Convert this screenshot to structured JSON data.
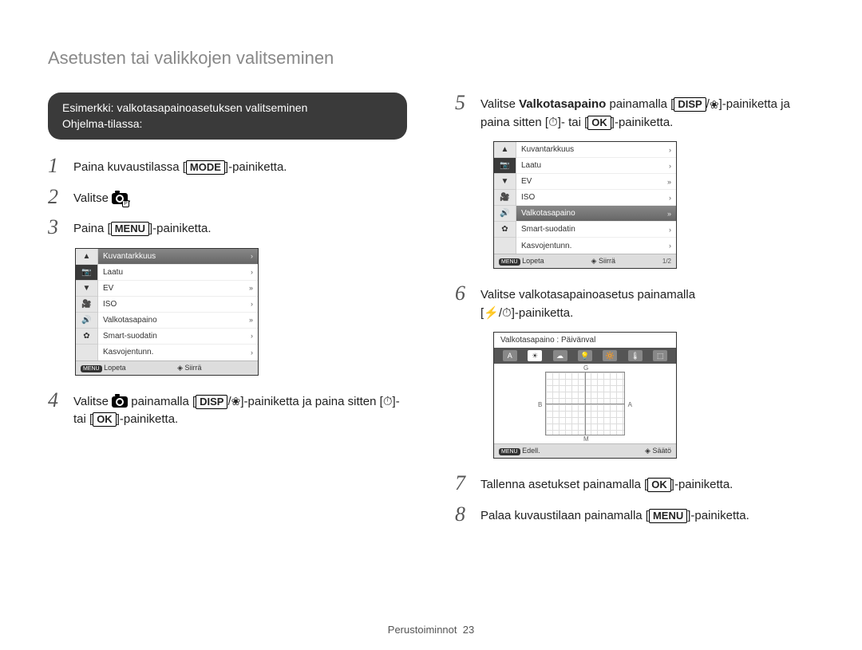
{
  "pageTitle": "Asetusten tai valikkojen valitseminen",
  "examplePill": {
    "line1": "Esimerkki: valkotasapainoasetuksen valitseminen",
    "line2": "Ohjelma-tilassa:"
  },
  "buttons": {
    "mode": "MODE",
    "menu": "MENU",
    "disp": "DISP",
    "ok": "OK"
  },
  "steps": {
    "s1": {
      "num": "1",
      "pre": "Paina kuvaustilassa [",
      "post": "]-painiketta."
    },
    "s2": {
      "num": "2",
      "pre": "Valitse ",
      "post": "."
    },
    "s3": {
      "num": "3",
      "pre": "Paina [",
      "post": "]-painiketta."
    },
    "s4": {
      "num": "4",
      "pre": "Valitse ",
      "mid1": " painamalla [",
      "mid2": "/",
      "mid3": "]-painiketta ja paina sitten [",
      "mid4": "]- tai [",
      "post": "]-painiketta."
    },
    "s5": {
      "num": "5",
      "pre": "Valitse ",
      "bold": "Valkotasapaino",
      "mid1": " painamalla [",
      "mid2": "/",
      "mid3": "]-painiketta ja paina sitten [",
      "mid4": "]- tai [",
      "post": "]-painiketta."
    },
    "s6": {
      "num": "6",
      "line1": "Valitse valkotasapainoasetus painamalla",
      "line2pre": "[",
      "line2mid": "/",
      "line2post": "]-painiketta."
    },
    "s7": {
      "num": "7",
      "pre": "Tallenna asetukset painamalla [",
      "post": "]-painiketta."
    },
    "s8": {
      "num": "8",
      "pre": "Palaa kuvaustilaan painamalla [",
      "post": "]-painiketta."
    }
  },
  "menuItems": {
    "r1": "Kuvantarkkuus",
    "r2": "Laatu",
    "r3": "EV",
    "r4": "ISO",
    "r5": "Valkotasapaino",
    "r6": "Smart-suodatin",
    "r7": "Kasvojentunn."
  },
  "menuFoot": {
    "exit": "Lopeta",
    "move": "Siirrä",
    "page": "1/2",
    "back": "Edell.",
    "adjust": "Säätö"
  },
  "sideArrows": {
    "up": "▲",
    "down": "▼"
  },
  "wb": {
    "title": "Valkotasapaino : Päivänval",
    "labels": {
      "g": "G",
      "m": "M",
      "b": "B",
      "a": "A"
    }
  },
  "footer": {
    "label": "Perustoiminnot",
    "page": "23"
  },
  "icons": {
    "camera": "📷",
    "video": "🎥",
    "sound": "🔊",
    "gear": "✿",
    "flower": "❀",
    "timer": "⏱",
    "flash": "⚡",
    "sun": "☀",
    "cloud": "☁",
    "bulb1": "💡",
    "bulb2": "🔆",
    "bulb3": "🌡",
    "chevR": "›",
    "chevRR": "»",
    "navBtn": "◈"
  }
}
